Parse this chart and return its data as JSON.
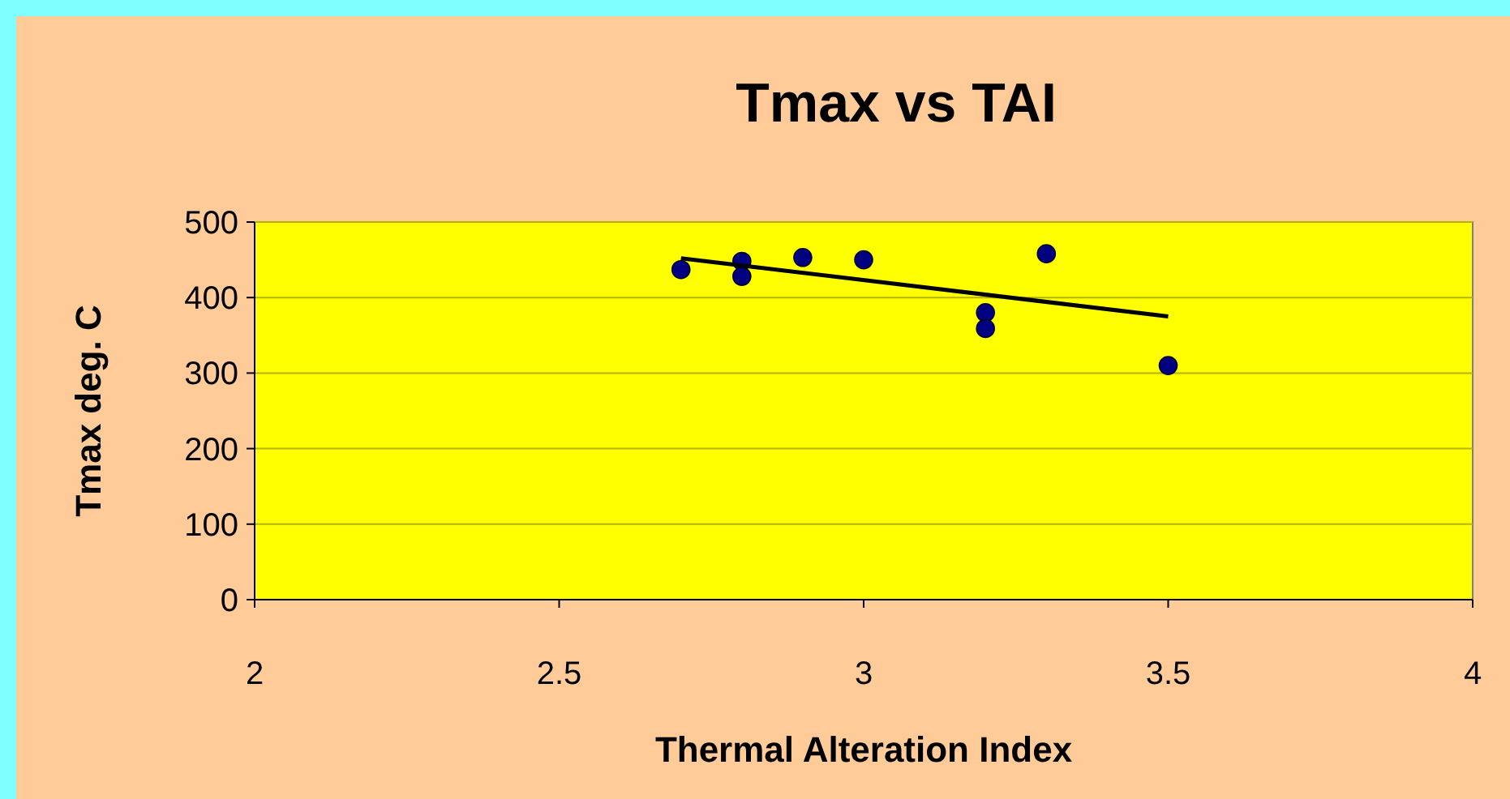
{
  "chart_data": {
    "type": "scatter",
    "title": "Tmax vs TAI",
    "xlabel": "Thermal Alteration Index",
    "ylabel": "Tmax deg. C",
    "xlim": [
      2,
      4
    ],
    "xticks": [
      2,
      2.5,
      3,
      3.5,
      4
    ],
    "ylim": [
      0,
      500
    ],
    "yticks": [
      0,
      100,
      200,
      300,
      400,
      500
    ],
    "grid": "y",
    "marker": "circle",
    "series": [
      {
        "color": "#000080",
        "x": [
          2.7,
          2.8,
          2.8,
          2.9,
          3.0,
          3.2,
          3.2,
          3.3,
          3.5
        ],
        "values": [
          437,
          448,
          428,
          453,
          450,
          380,
          359,
          458,
          310
        ]
      },
      {
        "type": "line",
        "color": "#000000",
        "x": [
          2.7,
          3.5
        ],
        "values": [
          452,
          375
        ],
        "marker": "none"
      }
    ]
  }
}
